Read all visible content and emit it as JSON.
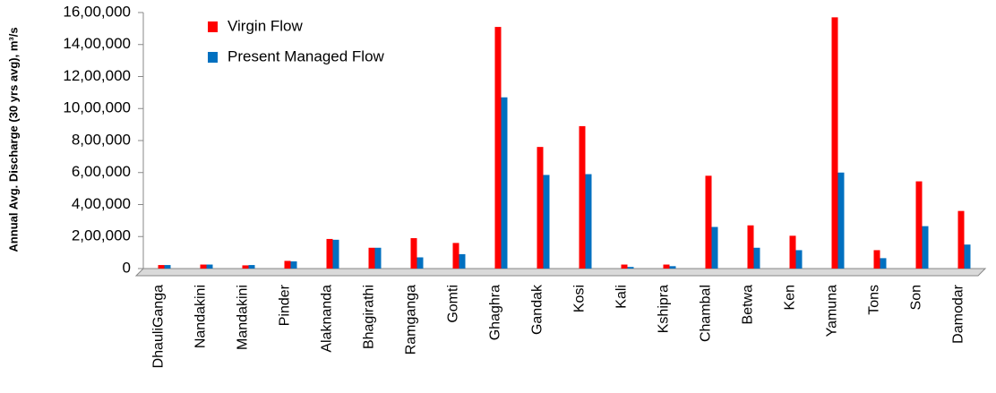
{
  "chart_data": {
    "type": "bar",
    "y_label": "Annual  Avg. Discharge (30 yrs avg), m³/s",
    "categories": [
      "DhauliGanga",
      "Nandakini",
      "Mandakini",
      "Pinder",
      "Alaknanda",
      "Bhagirathi",
      "Ramganga",
      "Gomti",
      "Ghaghra",
      "Gandak",
      "Kosi",
      "Kali",
      "Kshipra",
      "Chambal",
      "Betwa",
      "Ken",
      "Yamuna",
      "Tons",
      "Son",
      "Damodar"
    ],
    "series": [
      {
        "name": "Virgin Flow",
        "color": "#ff0000",
        "values": [
          22000,
          25000,
          20000,
          48000,
          185000,
          130000,
          190000,
          160000,
          1510000,
          760000,
          890000,
          25000,
          25000,
          580000,
          270000,
          205000,
          1570000,
          115000,
          545000,
          360000
        ]
      },
      {
        "name": "Present Managed Flow",
        "color": "#0070c0",
        "values": [
          22000,
          25000,
          22000,
          45000,
          180000,
          130000,
          70000,
          90000,
          1070000,
          585000,
          590000,
          10000,
          15000,
          260000,
          130000,
          115000,
          600000,
          65000,
          265000,
          150000
        ]
      }
    ],
    "ylim": [
      0,
      1600000
    ],
    "yticks": [
      0,
      {
        "value": 200000,
        "label": "2,00,000"
      },
      {
        "value": 400000,
        "label": "4,00,000"
      },
      {
        "value": 600000,
        "label": "6,00,000"
      },
      {
        "value": 800000,
        "label": "8,00,000"
      },
      {
        "value": 1000000,
        "label": "10,00,000"
      },
      {
        "value": 1200000,
        "label": "12,00,000"
      },
      {
        "value": 1400000,
        "label": "14,00,000"
      },
      {
        "value": 1600000,
        "label": "16,00,000"
      }
    ],
    "legend": "top-left"
  }
}
